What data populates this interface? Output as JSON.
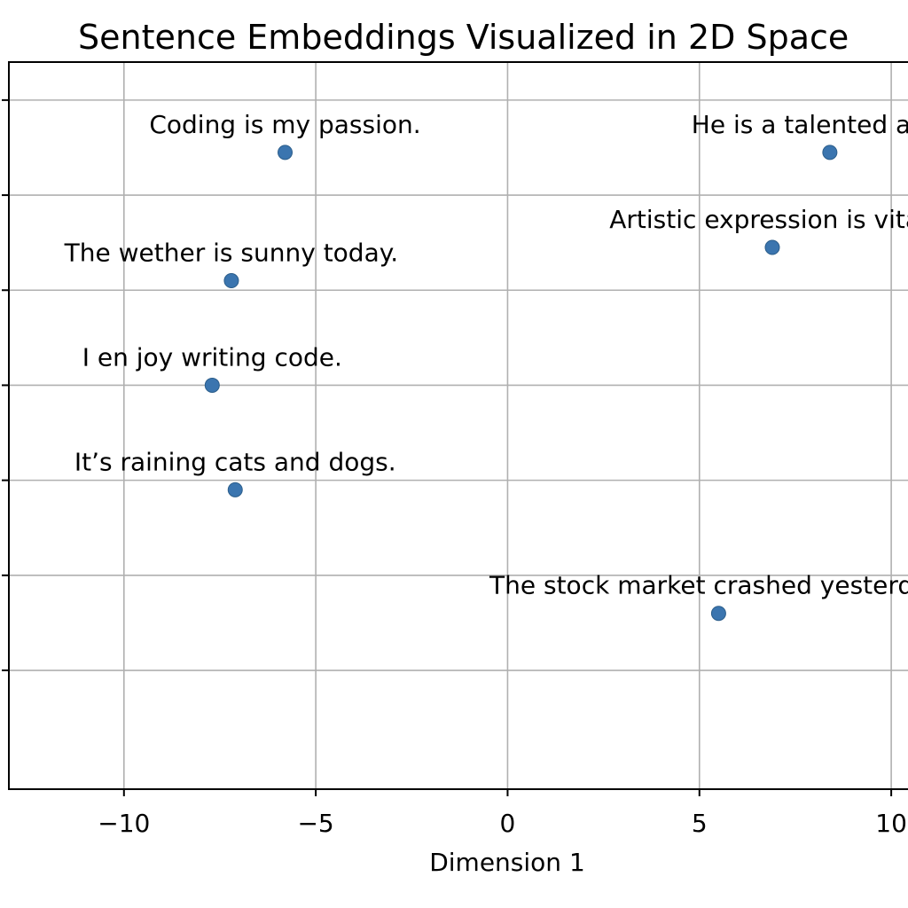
{
  "chart_data": {
    "type": "scatter",
    "title": "Sentence Embeddings Visualized in 2D Space",
    "xlabel": "Dimension 1",
    "ylabel": "",
    "xlim": [
      -13,
      11.5
    ],
    "ylim": [
      -8.5,
      6.8
    ],
    "grid": true,
    "x_ticks": [
      -10,
      -5,
      0,
      5,
      10
    ],
    "x_tick_labels": [
      "−10",
      "−5",
      "0",
      "5",
      "10"
    ],
    "y_ticks": [
      -6,
      -4,
      -2,
      0,
      2,
      4,
      6
    ],
    "colors": {
      "point": "#3b75af"
    },
    "points": [
      {
        "x": -5.8,
        "y": 4.9,
        "label": "Coding is my passion."
      },
      {
        "x": 8.4,
        "y": 4.9,
        "label": "He is a talented artist."
      },
      {
        "x": 6.9,
        "y": 2.9,
        "label": "Artistic expression is vital."
      },
      {
        "x": -7.2,
        "y": 2.2,
        "label": "The wether is sunny today."
      },
      {
        "x": -7.7,
        "y": 0.0,
        "label": "I en joy writing code."
      },
      {
        "x": -7.1,
        "y": -2.2,
        "label": "It’s raining cats and dogs."
      },
      {
        "x": 5.5,
        "y": -4.8,
        "label": "The stock market crashed yesterday."
      }
    ]
  }
}
